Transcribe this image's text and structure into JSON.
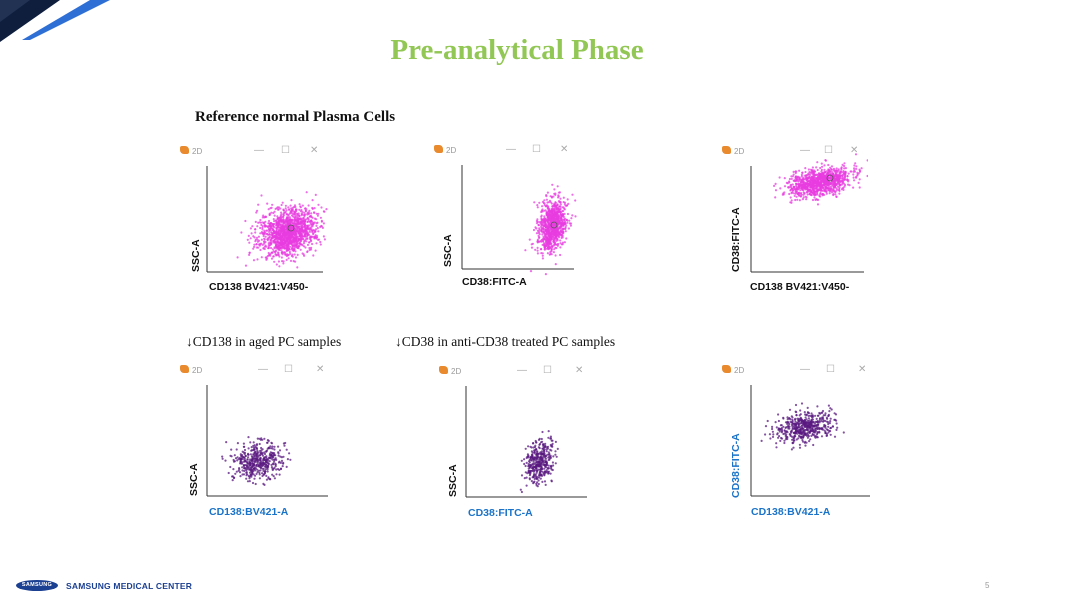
{
  "title": "Pre-analytical Phase",
  "subtitle": "Reference normal Plasma Cells",
  "notes": [
    "↓CD138 in aged PC samples",
    "↓CD38 in anti-CD38 treated PC samples"
  ],
  "window_tag": "2D",
  "window_controls": [
    "—",
    "☐",
    "✕"
  ],
  "panels": [
    {
      "ylabel": "SSC-A",
      "xlabel": "CD138 BV421:V450-",
      "color": "#e83ce0"
    },
    {
      "ylabel": "SSC-A",
      "xlabel": "CD38:FITC-A",
      "color": "#e83ce0"
    },
    {
      "ylabel": "CD38:FITC-A",
      "xlabel": "CD138 BV421:V450-",
      "color": "#e83ce0"
    },
    {
      "ylabel": "SSC-A",
      "xlabel": "CD138:BV421-A",
      "color": "#5a1a80"
    },
    {
      "ylabel": "SSC-A",
      "xlabel": "CD38:FITC-A",
      "color": "#5a1a80"
    },
    {
      "ylabel": "CD38:FITC-A",
      "xlabel": "CD138:BV421-A",
      "color": "#5a1a80"
    }
  ],
  "footer": {
    "logo_text": "SAMSUNG",
    "org": "SAMSUNG MEDICAL CENTER",
    "page_number": "5"
  },
  "colors": {
    "title": "#92c755",
    "dark_blue": "#1b3f91",
    "accent_blue": "#2e6fd6"
  }
}
